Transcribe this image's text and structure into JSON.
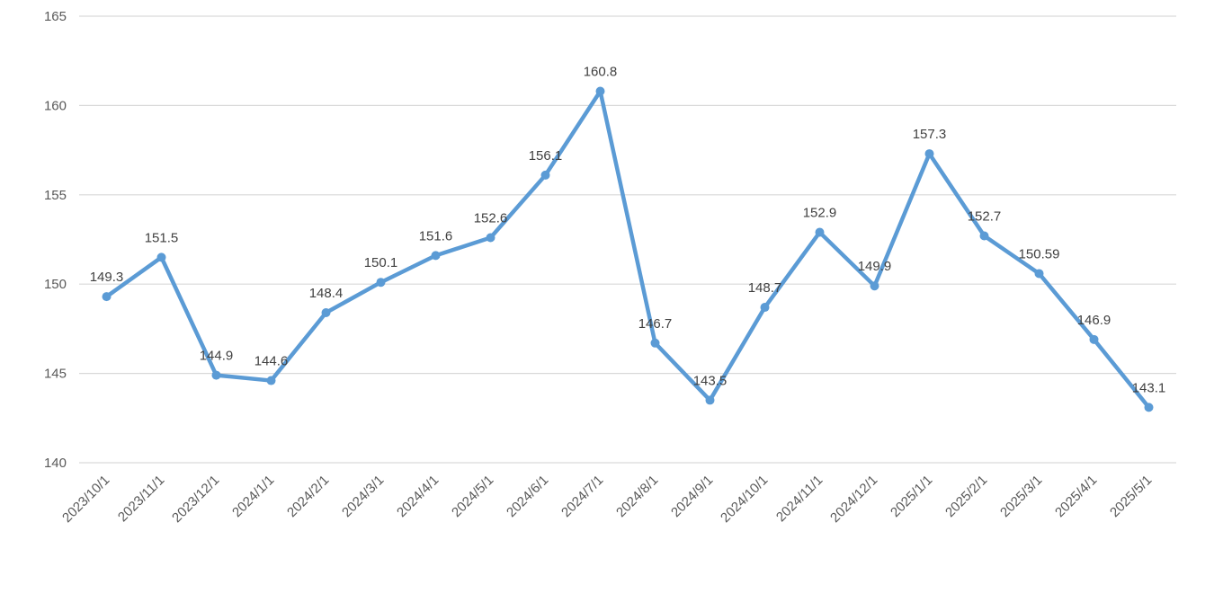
{
  "chart_data": {
    "type": "line",
    "title": "",
    "xlabel": "",
    "ylabel": "",
    "categories": [
      "2023/10/1",
      "2023/11/1",
      "2023/12/1",
      "2024/1/1",
      "2024/2/1",
      "2024/3/1",
      "2024/4/1",
      "2024/5/1",
      "2024/6/1",
      "2024/7/1",
      "2024/8/1",
      "2024/9/1",
      "2024/10/1",
      "2024/11/1",
      "2024/12/1",
      "2025/1/1",
      "2025/2/1",
      "2025/3/1",
      "2025/4/1",
      "2025/5/1"
    ],
    "series": [
      {
        "values": [
          149.3,
          151.5,
          144.9,
          144.6,
          148.4,
          150.1,
          151.6,
          152.6,
          156.1,
          160.8,
          146.7,
          143.5,
          148.7,
          152.9,
          149.9,
          157.3,
          152.7,
          150.59,
          146.9,
          143.1
        ],
        "data_labels": [
          "149.3",
          "151.5",
          "144.9",
          "144.6",
          "148.4",
          "150.1",
          "151.6",
          "152.6",
          "156.1",
          "160.8",
          "146.7",
          "143.5",
          "148.7",
          "152.9",
          "149.9",
          "157.3",
          "152.7",
          "150.59",
          "146.9",
          "143.1"
        ],
        "color": "#5b9bd5"
      }
    ],
    "ylim": [
      140,
      165
    ],
    "yticks": [
      140,
      145,
      150,
      155,
      160,
      165
    ],
    "ytick_labels": [
      "140",
      "145",
      "150",
      "155",
      "160",
      "165"
    ],
    "grid": true,
    "legend": "none",
    "x_tick_rotation": "45-degree"
  }
}
